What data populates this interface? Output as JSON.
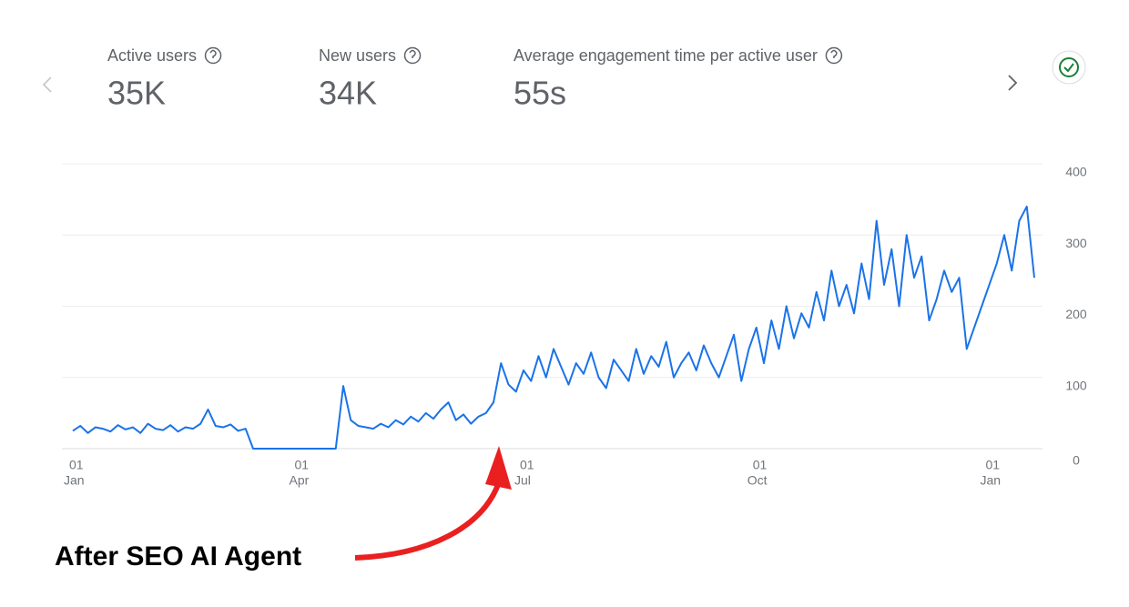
{
  "metrics": [
    {
      "label": "Active users",
      "value": "35K"
    },
    {
      "label": "New users",
      "value": "34K"
    },
    {
      "label": "Average engagement time per active user",
      "value": "55s"
    }
  ],
  "chart_data": {
    "type": "line",
    "color": "#1a73e8",
    "categories": [
      [
        "01",
        "Jan"
      ],
      null,
      null,
      null,
      null,
      null,
      null,
      null,
      null,
      null,
      null,
      null,
      null,
      null,
      null,
      null,
      null,
      null,
      null,
      null,
      null,
      null,
      null,
      null,
      null,
      null,
      null,
      null,
      null,
      null,
      [
        "01",
        "Apr"
      ],
      null,
      null,
      null,
      null,
      null,
      null,
      null,
      null,
      null,
      null,
      null,
      null,
      null,
      null,
      null,
      null,
      null,
      null,
      null,
      null,
      null,
      null,
      null,
      null,
      null,
      null,
      null,
      null,
      null,
      [
        "01",
        "Jul"
      ],
      null,
      null,
      null,
      null,
      null,
      null,
      null,
      null,
      null,
      null,
      null,
      null,
      null,
      null,
      null,
      null,
      null,
      null,
      null,
      null,
      null,
      null,
      null,
      null,
      null,
      null,
      null,
      null,
      null,
      null,
      [
        "01",
        "Oct"
      ],
      null,
      null,
      null,
      null,
      null,
      null,
      null,
      null,
      null,
      null,
      null,
      null,
      null,
      null,
      null,
      null,
      null,
      null,
      null,
      null,
      null,
      null,
      null,
      null,
      null,
      null,
      null,
      null,
      null,
      null,
      [
        "01",
        "Jan"
      ],
      null,
      null,
      null,
      null,
      null,
      null
    ],
    "values": [
      25,
      32,
      22,
      30,
      28,
      24,
      33,
      27,
      30,
      22,
      35,
      28,
      26,
      33,
      24,
      30,
      28,
      35,
      55,
      32,
      30,
      34,
      25,
      28,
      0,
      0,
      0,
      0,
      0,
      0,
      0,
      0,
      0,
      0,
      0,
      0,
      88,
      40,
      32,
      30,
      28,
      35,
      30,
      40,
      34,
      45,
      38,
      50,
      42,
      55,
      65,
      40,
      48,
      35,
      45,
      50,
      65,
      120,
      90,
      80,
      110,
      95,
      130,
      100,
      140,
      115,
      90,
      120,
      105,
      135,
      100,
      85,
      125,
      110,
      95,
      140,
      105,
      130,
      115,
      150,
      100,
      120,
      135,
      110,
      145,
      120,
      100,
      130,
      160,
      95,
      140,
      170,
      120,
      180,
      140,
      200,
      155,
      190,
      170,
      220,
      180,
      250,
      200,
      230,
      190,
      260,
      210,
      320,
      230,
      280,
      200,
      300,
      240,
      270,
      180,
      210,
      250,
      220,
      240,
      140,
      170,
      200,
      230,
      260,
      300,
      250,
      320,
      340,
      240
    ],
    "ylim": [
      0,
      400
    ],
    "yticks": [
      0,
      100,
      200,
      300,
      400
    ],
    "grid": true
  },
  "annotation": "After SEO AI Agent"
}
